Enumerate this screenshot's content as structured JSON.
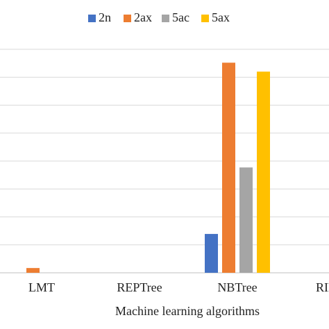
{
  "chart_data": {
    "type": "bar",
    "x_label": "Machine learning algorithms",
    "categories": [
      "LMT",
      "REPTree",
      "NBTree",
      "RIDOR"
    ],
    "series": [
      {
        "name": "2n",
        "color": "#4472c4",
        "values": [
          0,
          0,
          1.39,
          0
        ]
      },
      {
        "name": "2ax",
        "color": "#ed7d31",
        "values": [
          0.17,
          0,
          7.52,
          0
        ]
      },
      {
        "name": "5ac",
        "color": "#a5a5a5",
        "values": [
          0,
          0,
          3.77,
          0
        ]
      },
      {
        "name": "5ax",
        "color": "#ffc000",
        "values": [
          0,
          0,
          7.2,
          0
        ]
      }
    ],
    "ylim": [
      0,
      8
    ],
    "yticks": [
      0,
      1,
      2,
      3,
      4,
      5,
      6,
      7,
      8
    ],
    "grid": true,
    "legend": "top"
  }
}
